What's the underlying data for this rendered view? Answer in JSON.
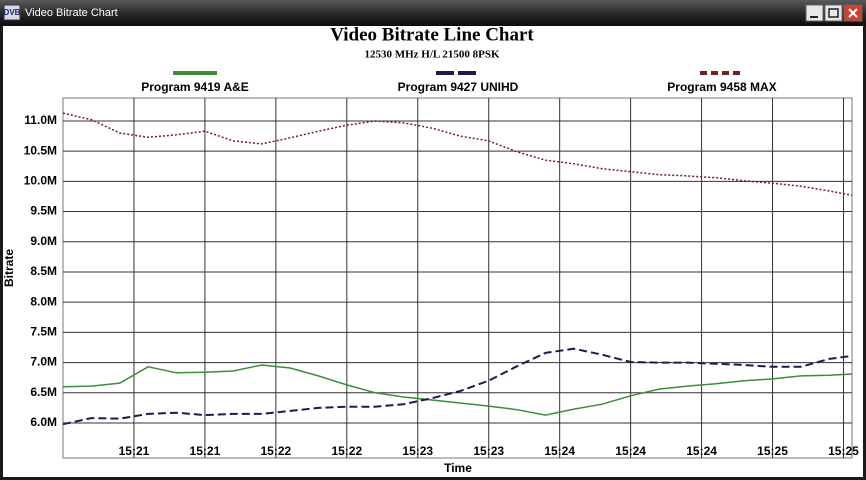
{
  "window": {
    "title": "Video Bitrate Chart",
    "icon": "DVB"
  },
  "chart_data": {
    "type": "line",
    "title": "Video Bitrate Line Chart",
    "subtitle": "12530 MHz H/L 21500 8PSK",
    "x_label": "Time",
    "y_label": "Bitrate",
    "x": [
      0,
      10,
      20,
      30,
      40,
      50,
      60,
      70,
      80,
      90,
      100,
      110,
      120,
      130,
      140,
      150,
      160,
      170,
      180,
      190,
      200,
      210,
      220,
      230,
      240,
      250,
      260,
      270,
      278
    ],
    "series": [
      {
        "name": "Program 9419 A&E",
        "color": "#3c8c3c",
        "style": "solid",
        "values": [
          6.6,
          6.61,
          6.66,
          6.93,
          6.83,
          6.84,
          6.86,
          6.96,
          6.91,
          6.78,
          6.63,
          6.5,
          6.43,
          6.38,
          6.33,
          6.28,
          6.22,
          6.13,
          6.23,
          6.31,
          6.45,
          6.56,
          6.61,
          6.65,
          6.7,
          6.73,
          6.78,
          6.79,
          6.81
        ]
      },
      {
        "name": "Program 9427 UNIHD",
        "color": "#1c1c4c",
        "style": "dashed",
        "values": [
          5.98,
          6.08,
          6.07,
          6.15,
          6.17,
          6.13,
          6.15,
          6.15,
          6.2,
          6.25,
          6.27,
          6.27,
          6.31,
          6.41,
          6.53,
          6.7,
          6.94,
          7.16,
          7.23,
          7.13,
          7.01,
          7.0,
          7.0,
          6.98,
          6.96,
          6.93,
          6.93,
          7.06,
          7.11
        ]
      },
      {
        "name": "Program 9458 MAX",
        "color": "#702020",
        "style": "dotted",
        "values": [
          11.13,
          11.02,
          10.8,
          10.73,
          10.77,
          10.83,
          10.67,
          10.62,
          10.72,
          10.83,
          10.93,
          11.0,
          10.97,
          10.88,
          10.75,
          10.67,
          10.49,
          10.35,
          10.29,
          10.21,
          10.16,
          10.11,
          10.09,
          10.06,
          10.01,
          9.97,
          9.92,
          9.84,
          9.77
        ]
      }
    ],
    "xlim": [
      0,
      278
    ],
    "xticks": [
      {
        "value": 25,
        "label": "15:21"
      },
      {
        "value": 50,
        "label": "15:21"
      },
      {
        "value": 75,
        "label": "15:22"
      },
      {
        "value": 100,
        "label": "15:22"
      },
      {
        "value": 125,
        "label": "15:23"
      },
      {
        "value": 150,
        "label": "15:23"
      },
      {
        "value": 175,
        "label": "15:24"
      },
      {
        "value": 200,
        "label": "15:24"
      },
      {
        "value": 225,
        "label": "15:24"
      },
      {
        "value": 250,
        "label": "15:25"
      },
      {
        "value": 275,
        "label": "15:25"
      }
    ],
    "ylim": [
      5.42,
      11.38
    ],
    "yticks": [
      {
        "value": 6.0,
        "label": "6.0M"
      },
      {
        "value": 6.5,
        "label": "6.5M"
      },
      {
        "value": 7.0,
        "label": "7.0M"
      },
      {
        "value": 7.5,
        "label": "7.5M"
      },
      {
        "value": 8.0,
        "label": "8.0M"
      },
      {
        "value": 8.5,
        "label": "8.5M"
      },
      {
        "value": 9.0,
        "label": "9.0M"
      },
      {
        "value": 9.5,
        "label": "9.5M"
      },
      {
        "value": 10.0,
        "label": "10.0M"
      },
      {
        "value": 10.5,
        "label": "10.5M"
      },
      {
        "value": 11.0,
        "label": "11.0M"
      }
    ],
    "grid": true,
    "legend": "top"
  }
}
